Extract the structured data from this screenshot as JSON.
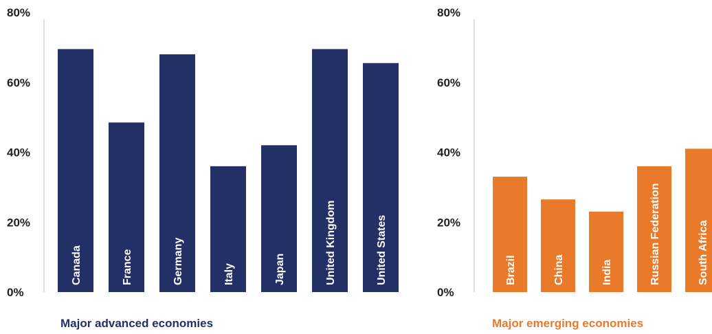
{
  "chart_data": [
    {
      "type": "bar",
      "title": "",
      "caption": "Major advanced economies",
      "categories": [
        "Canada",
        "France",
        "Germany",
        "Italy",
        "Japan",
        "United Kingdom",
        "United States"
      ],
      "values": [
        69.5,
        48.5,
        68,
        36,
        42,
        69.5,
        65.5
      ],
      "ylim": [
        0,
        80
      ],
      "yticks": [
        "0%",
        "20%",
        "40%",
        "60%",
        "80%"
      ],
      "tick_values": [
        0,
        20,
        40,
        60,
        80
      ],
      "xlabel": "",
      "ylabel": "",
      "color": "#233066",
      "caption_color": "#233066",
      "grid": false,
      "legend": "none"
    },
    {
      "type": "bar",
      "title": "",
      "caption": "Major emerging economies",
      "categories": [
        "Brazil",
        "China",
        "India",
        "Russian Federation",
        "South Africa"
      ],
      "values": [
        33,
        26.5,
        23,
        36,
        41
      ],
      "ylim": [
        0,
        80
      ],
      "yticks": [
        "0%",
        "20%",
        "40%",
        "60%",
        "80%"
      ],
      "tick_values": [
        0,
        20,
        40,
        60,
        80
      ],
      "xlabel": "",
      "ylabel": "",
      "color": "#e87a29",
      "caption_color": "#e87a29",
      "grid": false,
      "legend": "none"
    }
  ]
}
